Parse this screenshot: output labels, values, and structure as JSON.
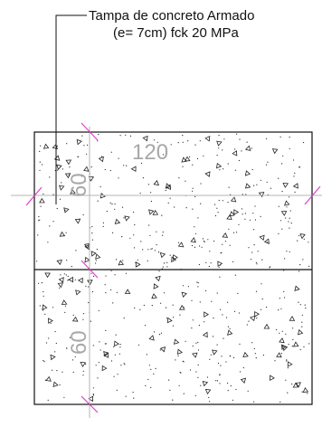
{
  "annotation": {
    "line1": "Tampa de concreto Armado",
    "line2": "(e= 7cm) fck 20 MPa"
  },
  "dimensions": {
    "top_width": "120",
    "upper_height": "60",
    "lower_height": "60"
  },
  "colors": {
    "outline": "#111111",
    "tick": "#e040c8",
    "axis": "#b5b5b5",
    "dimension_text": "#a8a8a8",
    "hatch": "#222222"
  }
}
